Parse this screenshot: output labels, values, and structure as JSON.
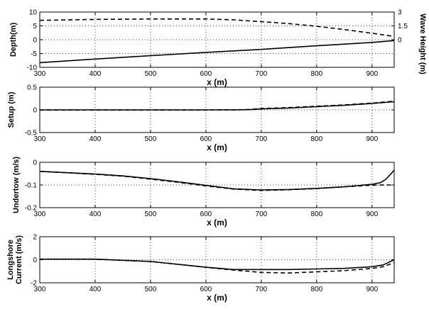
{
  "chart_data": [
    {
      "type": "line",
      "xlabel": "x (m)",
      "ylabel": "Depth(m)",
      "ylabel_right": "Wave Height (m)",
      "xlim": [
        300,
        940
      ],
      "ylim": [
        -10,
        10
      ],
      "ylim_right": [
        -3,
        3
      ],
      "xticks": [
        300,
        400,
        500,
        600,
        700,
        800,
        900
      ],
      "yticks": [
        -10,
        -5,
        0,
        5,
        10
      ],
      "yticks_right": [
        0,
        1.5,
        3
      ],
      "yticks_right_labels": [
        "0",
        "1.5",
        "3"
      ],
      "grid": true,
      "series": [
        {
          "style": "solid",
          "axis": "left",
          "x": [
            300,
            400,
            500,
            600,
            700,
            800,
            900,
            940
          ],
          "y": [
            -8.3,
            -7.0,
            -5.8,
            -4.6,
            -3.5,
            -2.2,
            -1.0,
            -0.3
          ]
        },
        {
          "style": "dashed",
          "axis": "right",
          "x": [
            300,
            400,
            500,
            600,
            650,
            700,
            750,
            800,
            850,
            900,
            940
          ],
          "y": [
            2.1,
            2.2,
            2.25,
            2.25,
            2.15,
            1.95,
            1.75,
            1.45,
            1.1,
            0.7,
            0.35
          ]
        }
      ]
    },
    {
      "type": "line",
      "xlabel": "x (m)",
      "ylabel": "Setup (m)",
      "xlim": [
        300,
        940
      ],
      "ylim": [
        -0.5,
        0.5
      ],
      "xticks": [
        300,
        400,
        500,
        600,
        700,
        800,
        900
      ],
      "yticks": [
        -0.5,
        0,
        0.5
      ],
      "yticks_labels": [
        "-0.5",
        "0",
        "0.5"
      ],
      "grid": true,
      "series": [
        {
          "style": "solid",
          "x": [
            300,
            500,
            600,
            650,
            680,
            700,
            750,
            800,
            850,
            900,
            940
          ],
          "y": [
            0.0,
            0.0,
            0.0,
            0.0,
            0.005,
            0.02,
            0.04,
            0.07,
            0.1,
            0.14,
            0.18
          ]
        },
        {
          "style": "dashed",
          "x": [
            300,
            500,
            600,
            650,
            680,
            700,
            750,
            800,
            850,
            900,
            940
          ],
          "y": [
            -0.005,
            -0.005,
            -0.005,
            0.0,
            0.01,
            0.03,
            0.05,
            0.08,
            0.11,
            0.15,
            0.19
          ]
        }
      ]
    },
    {
      "type": "line",
      "xlabel": "x (m)",
      "ylabel": "Undertow (m/s)",
      "xlim": [
        300,
        940
      ],
      "ylim": [
        -0.2,
        0
      ],
      "xticks": [
        300,
        400,
        500,
        600,
        700,
        800,
        900
      ],
      "yticks": [
        -0.2,
        -0.1,
        0
      ],
      "yticks_labels": [
        "-0.2",
        "-0.1",
        "0"
      ],
      "grid": true,
      "series": [
        {
          "style": "solid",
          "x": [
            300,
            350,
            400,
            450,
            500,
            550,
            600,
            650,
            700,
            750,
            800,
            850,
            900,
            915,
            925,
            940
          ],
          "y": [
            -0.04,
            -0.046,
            -0.052,
            -0.06,
            -0.072,
            -0.086,
            -0.102,
            -0.117,
            -0.122,
            -0.12,
            -0.115,
            -0.108,
            -0.097,
            -0.09,
            -0.075,
            -0.035
          ]
        },
        {
          "style": "dashed",
          "x": [
            300,
            350,
            400,
            450,
            500,
            550,
            600,
            650,
            700,
            750,
            800,
            850,
            900,
            920,
            940
          ],
          "y": [
            -0.04,
            -0.046,
            -0.053,
            -0.061,
            -0.074,
            -0.088,
            -0.104,
            -0.118,
            -0.124,
            -0.121,
            -0.116,
            -0.108,
            -0.101,
            -0.1,
            -0.1
          ]
        }
      ]
    },
    {
      "type": "line",
      "xlabel": "x (m)",
      "ylabel": "Longshore Current (m/s)",
      "ylabel_lines": [
        "Longshore",
        "Current (m/s)"
      ],
      "xlim": [
        300,
        940
      ],
      "ylim": [
        -2,
        2
      ],
      "xticks": [
        300,
        400,
        500,
        600,
        700,
        800,
        900
      ],
      "yticks": [
        -2,
        0,
        2
      ],
      "grid": true,
      "series": [
        {
          "style": "solid",
          "x": [
            300,
            400,
            500,
            550,
            600,
            650,
            700,
            750,
            800,
            850,
            900,
            920,
            940
          ],
          "y": [
            0.05,
            0.05,
            -0.15,
            -0.4,
            -0.65,
            -0.85,
            -0.85,
            -0.85,
            -0.8,
            -0.75,
            -0.6,
            -0.45,
            0.0
          ]
        },
        {
          "style": "dashed",
          "x": [
            300,
            400,
            500,
            550,
            600,
            650,
            700,
            750,
            800,
            850,
            900,
            920,
            940
          ],
          "y": [
            0.05,
            0.05,
            -0.15,
            -0.4,
            -0.65,
            -0.9,
            -1.1,
            -1.15,
            -1.05,
            -0.95,
            -0.75,
            -0.6,
            -0.25
          ]
        }
      ]
    }
  ]
}
